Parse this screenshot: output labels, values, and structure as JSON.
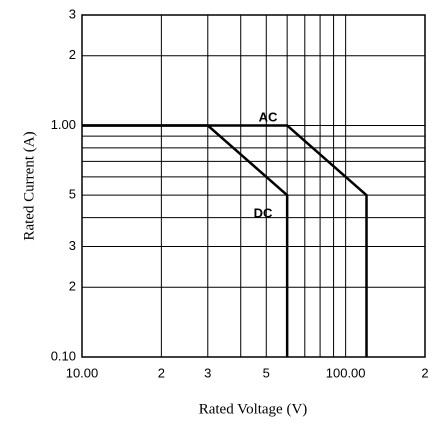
{
  "chart_data": {
    "type": "line",
    "log_x": true,
    "log_y": true,
    "grid": true,
    "xlabel": "Rated Voltage (V)",
    "ylabel": "Rated Current (A)",
    "xlim": [
      10,
      200
    ],
    "ylim": [
      0.1,
      3
    ],
    "xticks": [
      {
        "value": 10,
        "label": "10.00"
      },
      {
        "value": 20,
        "label": "2"
      },
      {
        "value": 30,
        "label": "3"
      },
      {
        "value": 50,
        "label": "5"
      },
      {
        "value": 100,
        "label": "100.00"
      },
      {
        "value": 200,
        "label": "2"
      }
    ],
    "yticks": [
      {
        "value": 0.1,
        "label": "0.10"
      },
      {
        "value": 0.2,
        "label": "2"
      },
      {
        "value": 0.3,
        "label": "3"
      },
      {
        "value": 0.5,
        "label": "5"
      },
      {
        "value": 1,
        "label": "1.00"
      },
      2,
      3
    ],
    "minor_xticks": [
      40,
      60,
      70,
      80,
      90
    ],
    "minor_yticks": [
      0.4,
      0.6,
      0.7,
      0.8,
      0.9
    ],
    "series": [
      {
        "name": "AC",
        "color": "#000000",
        "x": [
          10,
          60,
          120,
          120
        ],
        "values": [
          1,
          1,
          0.5,
          0.1
        ]
      },
      {
        "name": "DC",
        "color": "#000000",
        "x": [
          10,
          30,
          60,
          60
        ],
        "values": [
          1,
          1,
          0.5,
          0.1
        ]
      }
    ]
  }
}
